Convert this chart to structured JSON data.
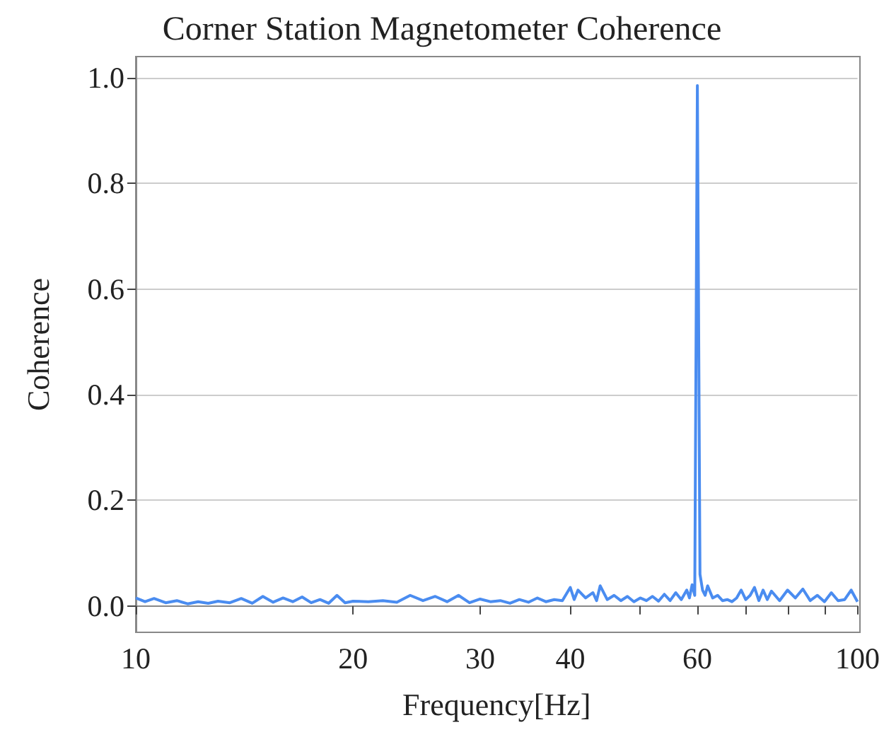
{
  "chart_data": {
    "type": "line",
    "title": "Corner Station Magnetometer Coherence",
    "xlabel": "Frequency[Hz]",
    "ylabel": "Coherence",
    "log": "x",
    "grid": "y",
    "marker": "none",
    "line_style": "solid",
    "xlim": [
      10,
      100
    ],
    "xticks": [
      10,
      20,
      30,
      40,
      {
        "value": 50,
        "label": null
      },
      60,
      {
        "value": 70,
        "label": null
      },
      {
        "value": 80,
        "label": null
      },
      {
        "value": 90,
        "label": null
      },
      100
    ],
    "ylim": [
      -0.05,
      1.04
    ],
    "yticks": [
      {
        "value": 0,
        "label": "0.0"
      },
      {
        "value": 0.2,
        "label": "0.2"
      },
      {
        "value": 0.4,
        "label": "0.4"
      },
      {
        "value": 0.6,
        "label": "0.6"
      },
      {
        "value": 0.8,
        "label": "0.8"
      },
      {
        "value": 1,
        "label": "1.0"
      }
    ],
    "series": [
      {
        "color": "#4a8cf0",
        "x": [
          10,
          10.3,
          10.6,
          11,
          11.4,
          11.8,
          12.2,
          12.6,
          13,
          13.5,
          14,
          14.5,
          15,
          15.5,
          16,
          16.5,
          17,
          17.5,
          18,
          18.5,
          19,
          19.5,
          20,
          21,
          22,
          23,
          24,
          25,
          26,
          27,
          28,
          29,
          30,
          31,
          32,
          33,
          34,
          35,
          36,
          37,
          38,
          39,
          40,
          40.5,
          41,
          42,
          43,
          43.5,
          44,
          45,
          46,
          47,
          48,
          49,
          50,
          51,
          52,
          53,
          54,
          55,
          56,
          57,
          58,
          58.5,
          59,
          59.5,
          60,
          60.5,
          61,
          61.5,
          62,
          63,
          64,
          65,
          66,
          67,
          68,
          69,
          70,
          71,
          72,
          73,
          74,
          75,
          76,
          78,
          80,
          82,
          84,
          86,
          88,
          90,
          92,
          94,
          96,
          98,
          100
        ],
        "values": [
          0.015,
          0.008,
          0.014,
          0.006,
          0.01,
          0.004,
          0.008,
          0.005,
          0.009,
          0.006,
          0.014,
          0.005,
          0.018,
          0.007,
          0.015,
          0.008,
          0.017,
          0.006,
          0.012,
          0.005,
          0.02,
          0.006,
          0.009,
          0.008,
          0.01,
          0.007,
          0.02,
          0.01,
          0.018,
          0.008,
          0.02,
          0.006,
          0.013,
          0.008,
          0.01,
          0.005,
          0.012,
          0.007,
          0.015,
          0.008,
          0.012,
          0.01,
          0.035,
          0.012,
          0.03,
          0.015,
          0.025,
          0.01,
          0.038,
          0.012,
          0.02,
          0.01,
          0.018,
          0.008,
          0.015,
          0.01,
          0.018,
          0.009,
          0.022,
          0.01,
          0.025,
          0.012,
          0.03,
          0.015,
          0.04,
          0.02,
          0.985,
          0.06,
          0.03,
          0.02,
          0.038,
          0.015,
          0.02,
          0.01,
          0.012,
          0.008,
          0.015,
          0.03,
          0.012,
          0.02,
          0.035,
          0.01,
          0.03,
          0.012,
          0.028,
          0.01,
          0.03,
          0.015,
          0.032,
          0.01,
          0.02,
          0.008,
          0.025,
          0.01,
          0.012,
          0.03,
          0.008
        ]
      }
    ]
  }
}
